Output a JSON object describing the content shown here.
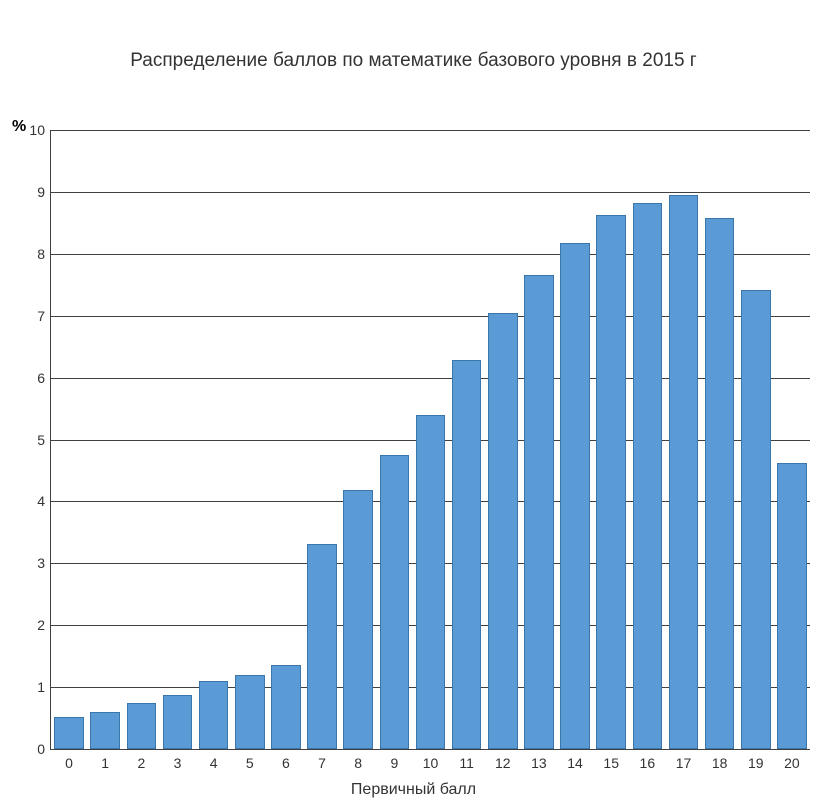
{
  "chart": {
    "type": "bar",
    "title": "Распределение баллов по математике базового уровня в 2015 г",
    "ylabel_unit": "%",
    "xlabel": "Первичный балл",
    "categories": [
      "0",
      "1",
      "2",
      "3",
      "4",
      "5",
      "6",
      "7",
      "8",
      "9",
      "10",
      "11",
      "12",
      "13",
      "14",
      "15",
      "16",
      "17",
      "18",
      "19",
      "20"
    ],
    "values": [
      0.52,
      0.6,
      0.75,
      0.88,
      1.1,
      1.2,
      1.35,
      3.32,
      4.18,
      4.75,
      5.4,
      6.28,
      7.05,
      7.65,
      8.18,
      8.62,
      8.82,
      8.95,
      8.58,
      7.42,
      4.62
    ],
    "bar_fill": "#5b9bd5",
    "bar_border": "#3a76aa",
    "bar_width_ratio": 0.82,
    "ylim": [
      0,
      10
    ],
    "ytick_step": 1,
    "grid_color": "#404040",
    "axis_color": "#404040",
    "background_color": "#ffffff",
    "title_fontsize": 19,
    "label_fontsize": 16,
    "tick_fontsize": 14
  }
}
